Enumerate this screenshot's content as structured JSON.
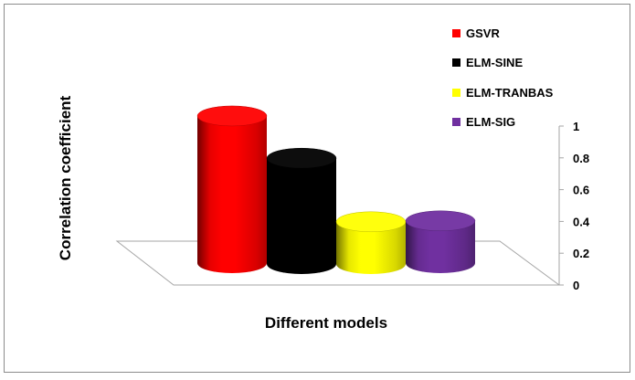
{
  "chart_data": {
    "type": "bar",
    "title": "",
    "xlabel": "Different models",
    "ylabel": "Correlation coefficient",
    "categories": [
      "GSVR",
      "ELM-SINE",
      "ELM-TRANBAS",
      "ELM-SIG"
    ],
    "values": [
      0.96,
      0.7,
      0.3,
      0.3
    ],
    "ylim": [
      0,
      1
    ],
    "yticks": [
      "0",
      "0.2",
      "0.4",
      "0.6",
      "0.8",
      "1"
    ],
    "colors": [
      "#ff0000",
      "#000000",
      "#ffff00",
      "#7030a0"
    ],
    "legend": {
      "position": "top-right",
      "entries": [
        "GSVR",
        "ELM-SINE",
        "ELM-TRANBAS",
        "ELM-SIG"
      ]
    },
    "bar_style": "3d-cylinder",
    "grid": false
  }
}
